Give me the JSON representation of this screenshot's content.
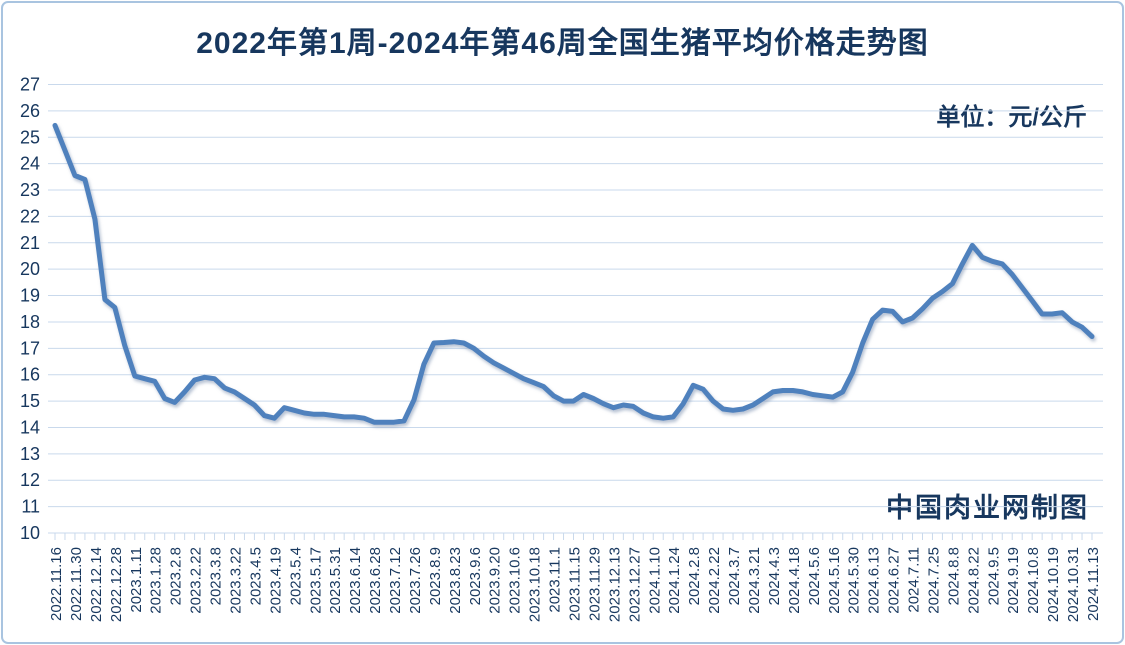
{
  "page": {
    "title": "2022年第1周-2024年第46周全国生猪平均价格走势图",
    "unit_note": "单位：元/公斤",
    "watermark": "中国肉业网制图"
  },
  "colors": {
    "title_text": "#17375E",
    "axis_text": "#17375E",
    "line": "#4F81BD",
    "gridline": "#C9D9EC",
    "frame_border": "#A9C4E0",
    "background": "#FFFFFF"
  },
  "chart_data": {
    "type": "line",
    "title": "2022年第1周-2024年第46周全国生猪平均价格走势图",
    "unit": "元/公斤",
    "xlabel": "",
    "ylabel": "",
    "ylim": [
      10,
      27
    ],
    "y_ticks": [
      10,
      11,
      12,
      13,
      14,
      15,
      16,
      17,
      18,
      19,
      20,
      21,
      22,
      23,
      24,
      25,
      26,
      27
    ],
    "grid": true,
    "legend": false,
    "label_every_n_points": 2,
    "x_labels": [
      "2022.11.16",
      "2022.11.30",
      "2022.12.14",
      "2022.12.28",
      "2023.1.11",
      "2023.1.28",
      "2023.2.8",
      "2023.2.22",
      "2023.3.8",
      "2023.3.22",
      "2023.4.5",
      "2023.4.19",
      "2023.5.4",
      "2023.5.17",
      "2023.5.31",
      "2023.6.14",
      "2023.6.28",
      "2023.7.12",
      "2023.7.26",
      "2023.8.9",
      "2023.8.23",
      "2023.9.6",
      "2023.9.20",
      "2023.10.6",
      "2023.10.18",
      "2023.11.1",
      "2023.11.15",
      "2023.11.29",
      "2023.12.13",
      "2023.12.27",
      "2024.1.10",
      "2024.1.24",
      "2024.2.8",
      "2024.2.22",
      "2024.3.7",
      "2024.3.21",
      "2024.4.3",
      "2024.4.18",
      "2024.5.6",
      "2024.5.16",
      "2024.5.30",
      "2024.6.13",
      "2024.6.27",
      "2024.7.11",
      "2024.7.25",
      "2024.8.8",
      "2024.8.22",
      "2024.9.5",
      "2024.9.19",
      "2024.10.8",
      "2024.10.19",
      "2024.10.31",
      "2024.11.13"
    ],
    "values": [
      25.45,
      24.5,
      23.55,
      23.4,
      21.9,
      18.85,
      18.55,
      17.1,
      15.95,
      15.85,
      15.75,
      15.1,
      14.95,
      15.35,
      15.8,
      15.9,
      15.85,
      15.5,
      15.35,
      15.1,
      14.85,
      14.45,
      14.35,
      14.75,
      14.65,
      14.55,
      14.5,
      14.5,
      14.45,
      14.4,
      14.4,
      14.35,
      14.2,
      14.2,
      14.2,
      14.25,
      15.05,
      16.4,
      17.2,
      17.22,
      17.25,
      17.2,
      17.0,
      16.7,
      16.45,
      16.25,
      16.05,
      15.85,
      15.7,
      15.55,
      15.2,
      15.0,
      15.0,
      15.25,
      15.1,
      14.9,
      14.75,
      14.85,
      14.8,
      14.55,
      14.4,
      14.35,
      14.4,
      14.9,
      15.6,
      15.45,
      15.0,
      14.7,
      14.65,
      14.7,
      14.85,
      15.1,
      15.35,
      15.4,
      15.4,
      15.35,
      15.25,
      15.2,
      15.15,
      15.35,
      16.1,
      17.2,
      18.1,
      18.45,
      18.4,
      18.0,
      18.15,
      18.5,
      18.9,
      19.15,
      19.45,
      20.2,
      20.9,
      20.45,
      20.3,
      20.2,
      19.8,
      19.3,
      18.8,
      18.3,
      18.3,
      18.35,
      18.0,
      17.8,
      17.45
    ]
  }
}
